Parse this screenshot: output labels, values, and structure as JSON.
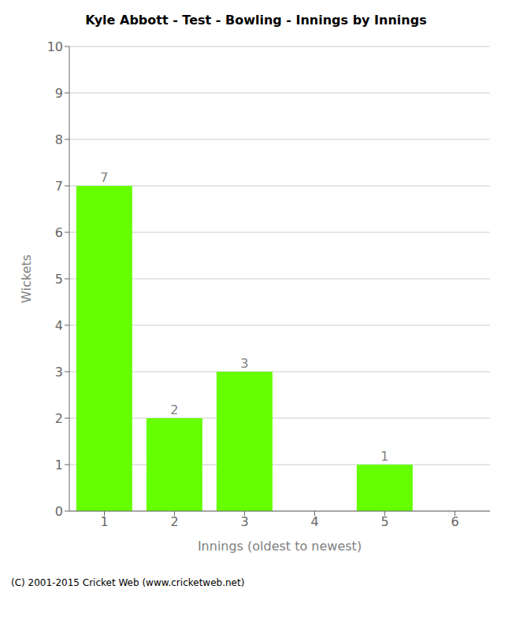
{
  "chart_data": {
    "type": "bar",
    "title": "Kyle Abbott - Test - Bowling - Innings by Innings",
    "xlabel": "Innings (oldest to newest)",
    "ylabel": "Wickets",
    "categories": [
      "1",
      "2",
      "3",
      "4",
      "5",
      "6"
    ],
    "values": [
      7,
      2,
      3,
      0,
      1,
      0
    ],
    "color": "#66ff00",
    "ylim": [
      0,
      10
    ],
    "yticks": [
      0,
      1,
      2,
      3,
      4,
      5,
      6,
      7,
      8,
      9,
      10
    ],
    "grid": true,
    "data_labels": true,
    "annotations": [
      "(C) 2001-2015 Cricket Web (www.cricketweb.net)"
    ]
  }
}
